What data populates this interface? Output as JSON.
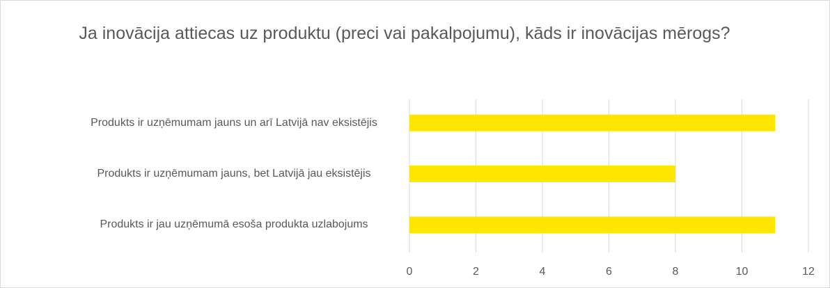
{
  "chart_data": {
    "type": "barh",
    "title": "Ja inovācija attiecas uz produktu (preci vai pakalpojumu), kāds ir inovācijas mērogs?",
    "categories": [
      "Produkts ir uzņēmumam jauns un arī Latvijā nav eksistējis",
      "Produkts ir uzņēmumam jauns, bet Latvijā jau eksistējis",
      "Produkts ir jau uzņēmumā esoša produkta uzlabojums"
    ],
    "values": [
      11,
      8,
      11
    ],
    "color": "#ffe600",
    "xlim": [
      0,
      12
    ],
    "xticks": [
      0,
      2,
      4,
      6,
      8,
      10,
      12
    ],
    "grid": true
  }
}
